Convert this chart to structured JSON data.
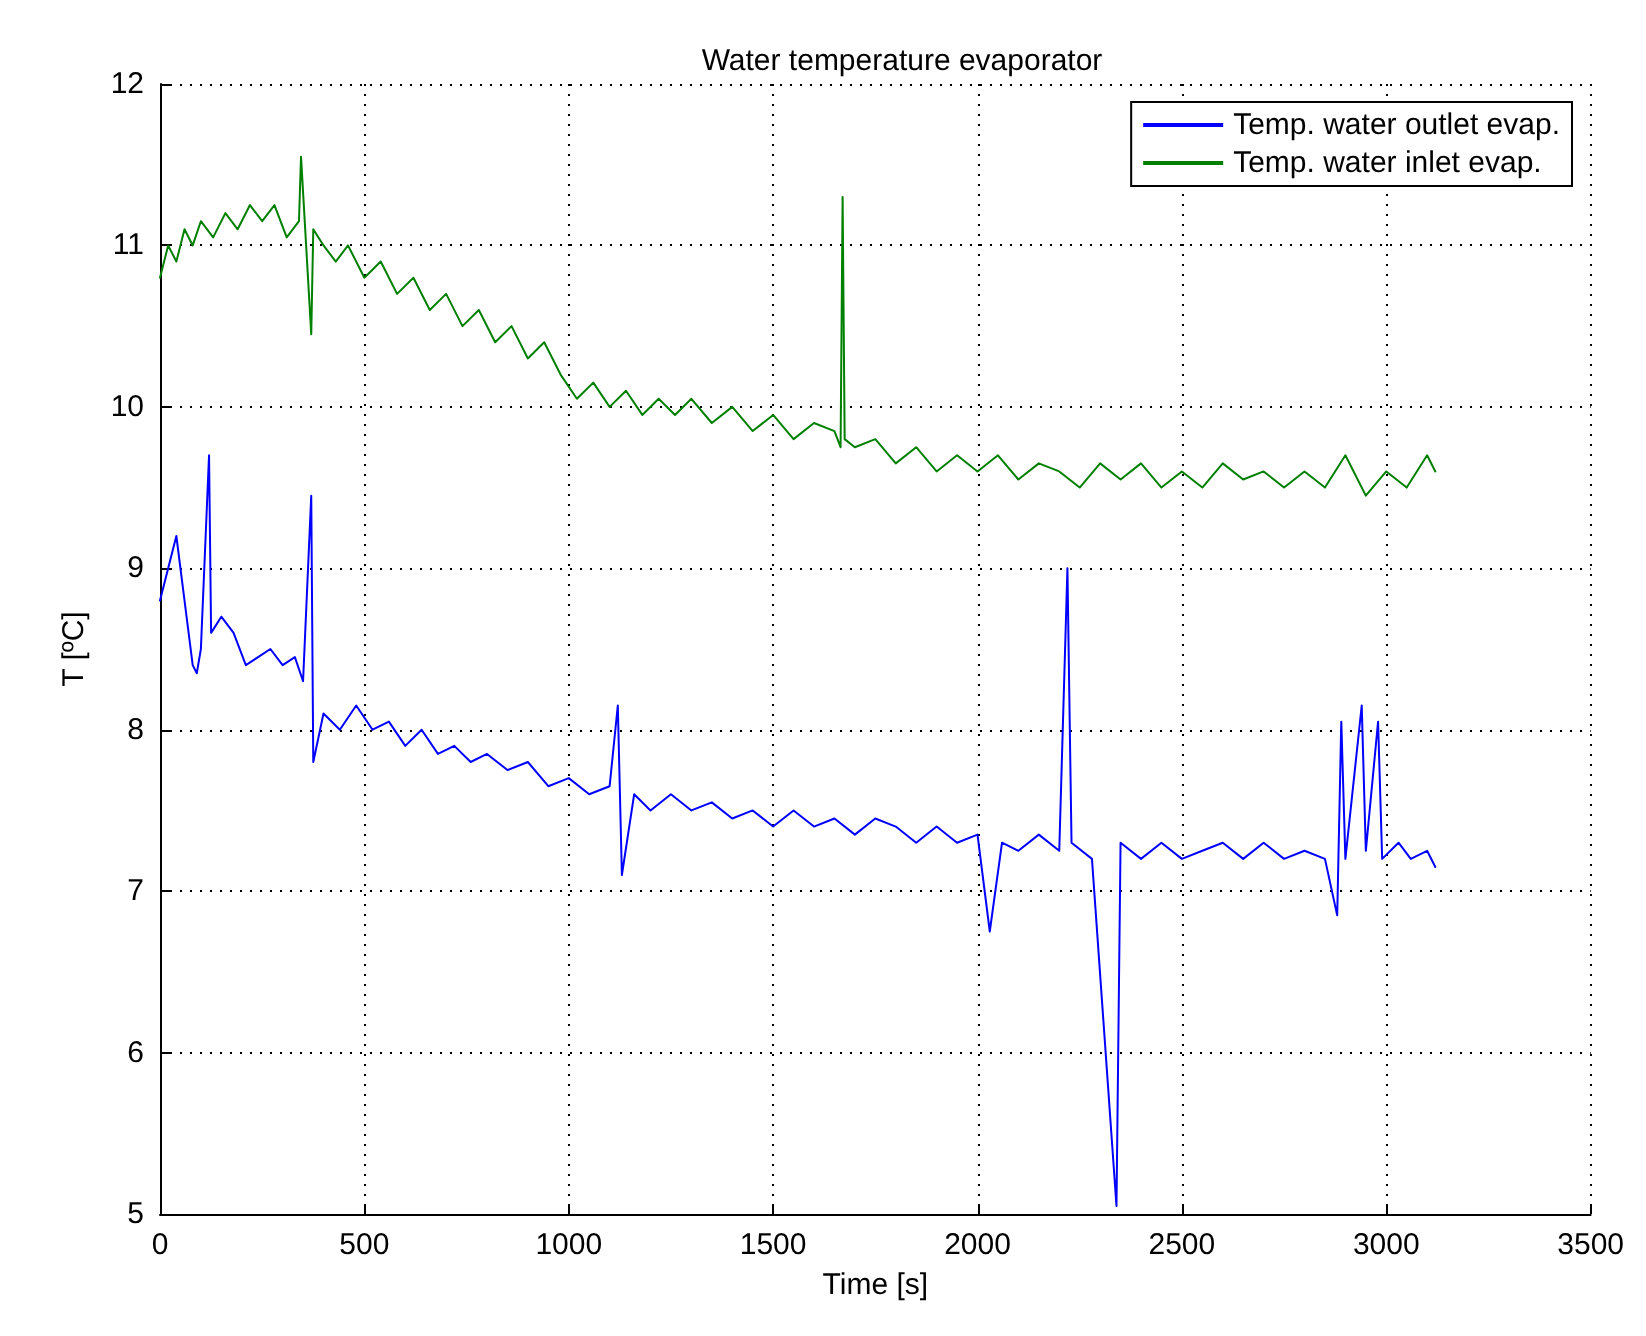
{
  "chart_data": {
    "type": "line",
    "title": "Water temperature evaporator",
    "xlabel": "Time [s]",
    "ylabel": "T [ºC]",
    "xlim": [
      0,
      3500
    ],
    "xticks": [
      0,
      500,
      1000,
      1500,
      2000,
      2500,
      3000,
      3500
    ],
    "ylim": [
      5,
      12
    ],
    "yticks": [
      5,
      6,
      7,
      8,
      9,
      10,
      11,
      12
    ],
    "grid": true,
    "legend": "top right",
    "marker": "none",
    "line_style": "solid",
    "series": [
      {
        "name": "Temp. water outlet evap.",
        "color": "#0000ff",
        "x": [
          0,
          20,
          40,
          60,
          80,
          90,
          100,
          120,
          125,
          150,
          180,
          210,
          240,
          270,
          300,
          330,
          350,
          370,
          375,
          400,
          440,
          480,
          520,
          560,
          600,
          640,
          680,
          720,
          760,
          800,
          850,
          900,
          950,
          1000,
          1050,
          1100,
          1120,
          1130,
          1160,
          1200,
          1250,
          1300,
          1350,
          1400,
          1450,
          1500,
          1550,
          1600,
          1650,
          1700,
          1750,
          1800,
          1850,
          1900,
          1950,
          2000,
          2030,
          2060,
          2100,
          2150,
          2200,
          2220,
          2230,
          2280,
          2340,
          2350,
          2400,
          2450,
          2500,
          2550,
          2600,
          2650,
          2700,
          2750,
          2800,
          2850,
          2880,
          2890,
          2900,
          2940,
          2950,
          2980,
          2990,
          3030,
          3060,
          3100,
          3120
        ],
        "values": [
          8.8,
          9.0,
          9.2,
          8.8,
          8.4,
          8.35,
          8.5,
          9.7,
          8.6,
          8.7,
          8.6,
          8.4,
          8.45,
          8.5,
          8.4,
          8.45,
          8.3,
          9.45,
          7.8,
          8.1,
          8.0,
          8.15,
          8.0,
          8.05,
          7.9,
          8.0,
          7.85,
          7.9,
          7.8,
          7.85,
          7.75,
          7.8,
          7.65,
          7.7,
          7.6,
          7.65,
          8.15,
          7.1,
          7.6,
          7.5,
          7.6,
          7.5,
          7.55,
          7.45,
          7.5,
          7.4,
          7.5,
          7.4,
          7.45,
          7.35,
          7.45,
          7.4,
          7.3,
          7.4,
          7.3,
          7.35,
          6.75,
          7.3,
          7.25,
          7.35,
          7.25,
          9.0,
          7.3,
          7.2,
          5.05,
          7.3,
          7.2,
          7.3,
          7.2,
          7.25,
          7.3,
          7.2,
          7.3,
          7.2,
          7.25,
          7.2,
          6.85,
          8.05,
          7.2,
          8.15,
          7.25,
          8.05,
          7.2,
          7.3,
          7.2,
          7.25,
          7.15
        ]
      },
      {
        "name": "Temp. water inlet evap.",
        "color": "#008000",
        "x": [
          0,
          20,
          40,
          60,
          80,
          100,
          130,
          160,
          190,
          220,
          250,
          280,
          310,
          340,
          345,
          370,
          375,
          400,
          430,
          460,
          500,
          540,
          580,
          620,
          660,
          700,
          740,
          780,
          820,
          860,
          900,
          940,
          980,
          1020,
          1060,
          1100,
          1140,
          1180,
          1220,
          1260,
          1300,
          1350,
          1400,
          1450,
          1500,
          1550,
          1600,
          1650,
          1665,
          1670,
          1675,
          1700,
          1750,
          1800,
          1850,
          1900,
          1950,
          2000,
          2050,
          2100,
          2150,
          2200,
          2250,
          2300,
          2350,
          2400,
          2450,
          2500,
          2550,
          2600,
          2650,
          2700,
          2750,
          2800,
          2850,
          2900,
          2950,
          3000,
          3050,
          3100,
          3120
        ],
        "values": [
          10.8,
          11.0,
          10.9,
          11.1,
          11.0,
          11.15,
          11.05,
          11.2,
          11.1,
          11.25,
          11.15,
          11.25,
          11.05,
          11.15,
          11.55,
          10.45,
          11.1,
          11.0,
          10.9,
          11.0,
          10.8,
          10.9,
          10.7,
          10.8,
          10.6,
          10.7,
          10.5,
          10.6,
          10.4,
          10.5,
          10.3,
          10.4,
          10.2,
          10.05,
          10.15,
          10.0,
          10.1,
          9.95,
          10.05,
          9.95,
          10.05,
          9.9,
          10.0,
          9.85,
          9.95,
          9.8,
          9.9,
          9.85,
          9.75,
          11.3,
          9.8,
          9.75,
          9.8,
          9.65,
          9.75,
          9.6,
          9.7,
          9.6,
          9.7,
          9.55,
          9.65,
          9.6,
          9.5,
          9.65,
          9.55,
          9.65,
          9.5,
          9.6,
          9.5,
          9.65,
          9.55,
          9.6,
          9.5,
          9.6,
          9.5,
          9.7,
          9.45,
          9.6,
          9.5,
          9.7,
          9.6
        ]
      }
    ]
  }
}
